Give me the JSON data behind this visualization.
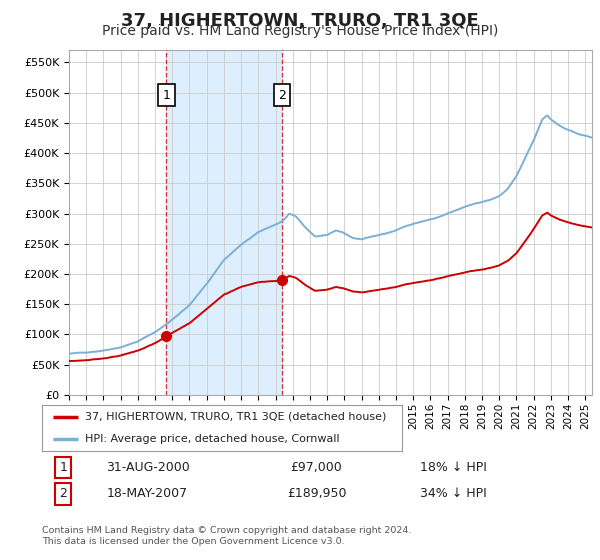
{
  "title": "37, HIGHERTOWN, TRURO, TR1 3QE",
  "subtitle": "Price paid vs. HM Land Registry's House Price Index (HPI)",
  "title_fontsize": 13,
  "subtitle_fontsize": 10,
  "ylabel_ticks": [
    "£0",
    "£50K",
    "£100K",
    "£150K",
    "£200K",
    "£250K",
    "£300K",
    "£350K",
    "£400K",
    "£450K",
    "£500K",
    "£550K"
  ],
  "ytick_values": [
    0,
    50000,
    100000,
    150000,
    200000,
    250000,
    300000,
    350000,
    400000,
    450000,
    500000,
    550000
  ],
  "ylim": [
    0,
    570000
  ],
  "xlim_start": 1995.0,
  "xlim_end": 2025.4,
  "hpi_color": "#7bafd4",
  "property_color": "#cc0000",
  "shade_color": "#ddeeff",
  "purchase1_date": 2000.664,
  "purchase1_price": 97000,
  "purchase2_date": 2007.378,
  "purchase2_price": 189950,
  "legend_line1": "37, HIGHERTOWN, TRURO, TR1 3QE (detached house)",
  "legend_line2": "HPI: Average price, detached house, Cornwall",
  "purchase1_text": "31-AUG-2000",
  "purchase1_amount": "£97,000",
  "purchase1_pct": "18% ↓ HPI",
  "purchase2_text": "18-MAY-2007",
  "purchase2_amount": "£189,950",
  "purchase2_pct": "34% ↓ HPI",
  "footnote": "Contains HM Land Registry data © Crown copyright and database right 2024.\nThis data is licensed under the Open Government Licence v3.0.",
  "background_color": "#ffffff",
  "grid_color": "#cccccc"
}
